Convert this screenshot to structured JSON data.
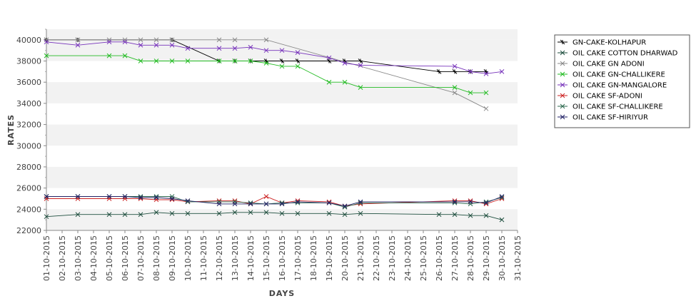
{
  "chart_data": {
    "type": "line",
    "title": "",
    "xlabel": "DAYS",
    "ylabel": "RATES",
    "ylim": [
      22000,
      41000
    ],
    "yticks": [
      22000,
      24000,
      26000,
      28000,
      30000,
      32000,
      34000,
      36000,
      38000,
      40000
    ],
    "x_tick_labels": [
      "01-10-2015",
      "02-10-2015",
      "03-10-2015",
      "04-10-2015",
      "05-10-2015",
      "06-10-2015",
      "07-10-2015",
      "08-10-2015",
      "09-10-2015",
      "10-10-2015",
      "11-10-2015",
      "12-10-2015",
      "13-10-2015",
      "14-10-2015",
      "15-10-2015",
      "16-10-2015",
      "17-10-2015",
      "18-10-2015",
      "19-10-2015",
      "20-10-2015",
      "21-10-2015",
      "22-10-2015",
      "23-10-2015",
      "24-10-2015",
      "25-10-2015",
      "26-10-2015",
      "27-10-2015",
      "28-10-2015",
      "29-10-2015",
      "30-10-2015",
      "31-10-2015"
    ],
    "grid": "alternating horizontal bands",
    "legend_position": "right",
    "series": [
      {
        "name": "GN-CAKE-KOLHAPUR",
        "color": "#000000",
        "marker": "plus",
        "points": [
          [
            1,
            40000
          ],
          [
            3,
            40000
          ],
          [
            9,
            40000
          ],
          [
            12,
            38000
          ],
          [
            13,
            38000
          ],
          [
            14,
            38000
          ],
          [
            15,
            38000
          ],
          [
            16,
            38000
          ],
          [
            17,
            38000
          ],
          [
            19,
            38000
          ],
          [
            20,
            38000
          ],
          [
            21,
            38000
          ],
          [
            26,
            37000
          ],
          [
            27,
            37000
          ],
          [
            28,
            37000
          ],
          [
            29,
            37000
          ]
        ]
      },
      {
        "name": "OIL CAKE COTTON DHARWAD",
        "color": "#1f4f3f",
        "marker": "x",
        "points": [
          [
            1,
            23300
          ],
          [
            3,
            23500
          ],
          [
            5,
            23500
          ],
          [
            6,
            23500
          ],
          [
            7,
            23500
          ],
          [
            8,
            23700
          ],
          [
            9,
            23600
          ],
          [
            10,
            23600
          ],
          [
            12,
            23600
          ],
          [
            13,
            23700
          ],
          [
            14,
            23700
          ],
          [
            15,
            23700
          ],
          [
            16,
            23600
          ],
          [
            17,
            23600
          ],
          [
            19,
            23600
          ],
          [
            20,
            23500
          ],
          [
            21,
            23600
          ],
          [
            26,
            23500
          ],
          [
            27,
            23500
          ],
          [
            28,
            23400
          ],
          [
            29,
            23400
          ],
          [
            30,
            23000
          ]
        ]
      },
      {
        "name": "OIL CAKE GN ADONI",
        "color": "#888888",
        "marker": "x",
        "points": [
          [
            1,
            40000
          ],
          [
            3,
            40000
          ],
          [
            5,
            40000
          ],
          [
            6,
            40000
          ],
          [
            7,
            40000
          ],
          [
            8,
            40000
          ],
          [
            9,
            40000
          ],
          [
            12,
            40000
          ],
          [
            13,
            40000
          ],
          [
            15,
            40000
          ],
          [
            27,
            35000
          ],
          [
            29,
            33500
          ]
        ]
      },
      {
        "name": "OIL CAKE GN-CHALLIKERE",
        "color": "#22bb22",
        "marker": "x",
        "points": [
          [
            1,
            38500
          ],
          [
            5,
            38500
          ],
          [
            6,
            38500
          ],
          [
            7,
            38000
          ],
          [
            8,
            38000
          ],
          [
            9,
            38000
          ],
          [
            10,
            38000
          ],
          [
            12,
            38000
          ],
          [
            13,
            38000
          ],
          [
            14,
            38000
          ],
          [
            15,
            37800
          ],
          [
            16,
            37500
          ],
          [
            17,
            37500
          ],
          [
            19,
            36000
          ],
          [
            20,
            36000
          ],
          [
            21,
            35500
          ],
          [
            27,
            35500
          ],
          [
            28,
            35000
          ],
          [
            29,
            35000
          ]
        ]
      },
      {
        "name": "OIL CAKE GN-MANGALORE",
        "color": "#7733bb",
        "marker": "x",
        "points": [
          [
            1,
            39800
          ],
          [
            3,
            39500
          ],
          [
            5,
            39800
          ],
          [
            6,
            39800
          ],
          [
            7,
            39500
          ],
          [
            8,
            39500
          ],
          [
            9,
            39500
          ],
          [
            10,
            39200
          ],
          [
            12,
            39200
          ],
          [
            13,
            39200
          ],
          [
            14,
            39300
          ],
          [
            15,
            39000
          ],
          [
            16,
            39000
          ],
          [
            17,
            38800
          ],
          [
            19,
            38300
          ],
          [
            20,
            37800
          ],
          [
            21,
            37600
          ],
          [
            27,
            37500
          ],
          [
            28,
            37000
          ],
          [
            29,
            36800
          ],
          [
            30,
            37000
          ]
        ]
      },
      {
        "name": "OIL CAKE SF-ADONI",
        "color": "#cc2222",
        "marker": "x",
        "points": [
          [
            1,
            25000
          ],
          [
            3,
            25000
          ],
          [
            5,
            25000
          ],
          [
            6,
            25000
          ],
          [
            7,
            25000
          ],
          [
            8,
            24900
          ],
          [
            9,
            24900
          ],
          [
            10,
            24700
          ],
          [
            12,
            24800
          ],
          [
            13,
            24800
          ],
          [
            14,
            24500
          ],
          [
            15,
            25200
          ],
          [
            16,
            24600
          ],
          [
            17,
            24800
          ],
          [
            19,
            24700
          ],
          [
            20,
            24300
          ],
          [
            21,
            24500
          ],
          [
            27,
            24800
          ],
          [
            28,
            24800
          ],
          [
            29,
            24500
          ],
          [
            30,
            25000
          ]
        ]
      },
      {
        "name": "OIL CAKE SF-CHALLIKERE",
        "color": "#2d6a4f",
        "marker": "x",
        "points": [
          [
            1,
            25200
          ],
          [
            3,
            25200
          ],
          [
            5,
            25200
          ],
          [
            6,
            25200
          ],
          [
            7,
            25200
          ],
          [
            8,
            25200
          ],
          [
            9,
            25200
          ],
          [
            10,
            24700
          ],
          [
            12,
            24700
          ],
          [
            13,
            24700
          ],
          [
            14,
            24600
          ],
          [
            15,
            24500
          ],
          [
            16,
            24600
          ],
          [
            17,
            24600
          ],
          [
            19,
            24600
          ],
          [
            20,
            24200
          ],
          [
            21,
            24600
          ],
          [
            27,
            24600
          ],
          [
            28,
            24500
          ],
          [
            29,
            24700
          ],
          [
            30,
            25100
          ]
        ]
      },
      {
        "name": "OIL CAKE SF-HIRIYUR",
        "color": "#222266",
        "marker": "x",
        "points": [
          [
            1,
            25200
          ],
          [
            3,
            25200
          ],
          [
            5,
            25200
          ],
          [
            6,
            25200
          ],
          [
            7,
            25100
          ],
          [
            8,
            25100
          ],
          [
            9,
            25000
          ],
          [
            10,
            24800
          ],
          [
            12,
            24500
          ],
          [
            13,
            24500
          ],
          [
            14,
            24500
          ],
          [
            15,
            24500
          ],
          [
            16,
            24500
          ],
          [
            17,
            24700
          ],
          [
            19,
            24600
          ],
          [
            20,
            24300
          ],
          [
            21,
            24700
          ],
          [
            27,
            24700
          ],
          [
            28,
            24700
          ],
          [
            29,
            24600
          ],
          [
            30,
            25200
          ]
        ]
      }
    ]
  }
}
